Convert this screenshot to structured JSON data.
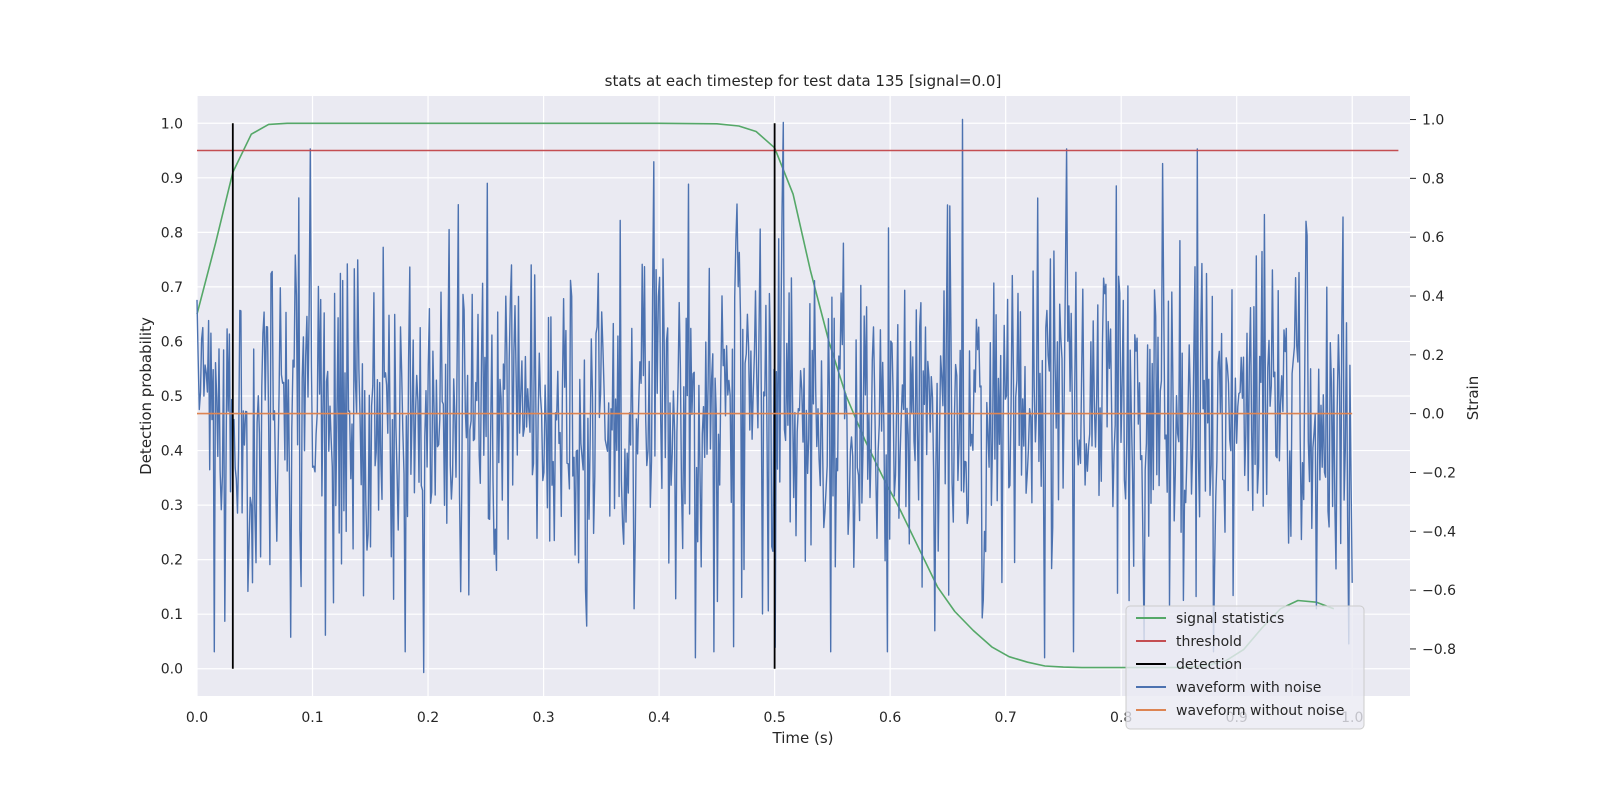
{
  "chart_data": {
    "type": "line",
    "title": "stats at each timestep for test data 135 [signal=0.0]",
    "xlabel": "Time (s)",
    "ylabel_left": "Detection probability",
    "ylabel_right": "Strain",
    "xlim": [
      0.0,
      1.05
    ],
    "ylim_left": [
      -0.05,
      1.05
    ],
    "ylim_right": [
      -0.96,
      1.08
    ],
    "x_ticks": [
      0.0,
      0.1,
      0.2,
      0.3,
      0.4,
      0.5,
      0.6,
      0.7,
      0.8,
      0.9,
      1.0
    ],
    "x_tick_labels": [
      "0.0",
      "0.1",
      "0.2",
      "0.3",
      "0.4",
      "0.5",
      "0.6",
      "0.7",
      "0.8",
      "0.9",
      "1.0"
    ],
    "y_left_ticks": [
      0.0,
      0.1,
      0.2,
      0.3,
      0.4,
      0.5,
      0.6,
      0.7,
      0.8,
      0.9,
      1.0
    ],
    "y_left_tick_labels": [
      "0.0",
      "0.1",
      "0.2",
      "0.3",
      "0.4",
      "0.5",
      "0.6",
      "0.7",
      "0.8",
      "0.9",
      "1.0"
    ],
    "y_right_ticks": [
      -0.8,
      -0.6,
      -0.4,
      -0.2,
      0.0,
      0.2,
      0.4,
      0.6,
      0.8,
      1.0
    ],
    "y_right_tick_labels": [
      "−0.8",
      "−0.6",
      "−0.4",
      "−0.2",
      "0.0",
      "0.2",
      "0.4",
      "0.6",
      "0.8",
      "1.0"
    ],
    "grid": true,
    "legend_position": "lower-right",
    "colors": {
      "background": "#eaeaf2",
      "grid": "#ffffff",
      "signal_statistics": "#55a868",
      "threshold": "#c44e52",
      "detection": "#000000",
      "waveform_with_noise": "#4c72b0",
      "waveform_without_noise": "#dd8452"
    },
    "legend": [
      {
        "key": "signal_statistics",
        "label": "signal statistics"
      },
      {
        "key": "threshold",
        "label": "threshold"
      },
      {
        "key": "detection",
        "label": "detection"
      },
      {
        "key": "waveform_with_noise",
        "label": "waveform with noise"
      },
      {
        "key": "waveform_without_noise",
        "label": "waveform without noise"
      }
    ],
    "series": [
      {
        "key": "signal_statistics",
        "axis": "left",
        "x": [
          0.0,
          0.016,
          0.031,
          0.047,
          0.062,
          0.078,
          0.094,
          0.125,
          0.2,
          0.3,
          0.4,
          0.45,
          0.469,
          0.484,
          0.5,
          0.516,
          0.531,
          0.547,
          0.562,
          0.578,
          0.594,
          0.609,
          0.625,
          0.641,
          0.656,
          0.672,
          0.688,
          0.703,
          0.719,
          0.734,
          0.75,
          0.766,
          0.781,
          0.797,
          0.812,
          0.828,
          0.844,
          0.859,
          0.875,
          0.891,
          0.906,
          0.922,
          0.938,
          0.953,
          0.969,
          0.984
        ],
        "y": [
          0.65,
          0.78,
          0.91,
          0.98,
          0.998,
          1.0,
          1.0,
          1.0,
          1.0,
          1.0,
          1.0,
          0.999,
          0.995,
          0.985,
          0.955,
          0.87,
          0.73,
          0.6,
          0.5,
          0.42,
          0.35,
          0.29,
          0.22,
          0.15,
          0.105,
          0.07,
          0.04,
          0.022,
          0.012,
          0.005,
          0.003,
          0.002,
          0.002,
          0.002,
          0.002,
          0.002,
          0.002,
          0.003,
          0.006,
          0.015,
          0.035,
          0.075,
          0.11,
          0.125,
          0.122,
          0.11
        ]
      },
      {
        "key": "threshold",
        "axis": "left",
        "x": [
          0.0,
          1.04
        ],
        "y": [
          0.95,
          0.95
        ]
      },
      {
        "key": "waveform_without_noise",
        "axis": "right",
        "x": [
          0.0,
          1.0
        ],
        "y": [
          0.0,
          0.0
        ]
      }
    ],
    "detections": [
      {
        "x": 0.031,
        "y0": 0.0,
        "y1": 1.0
      },
      {
        "x": 0.5,
        "y0": 0.0,
        "y1": 1.0
      }
    ],
    "noisy_waveform": {
      "key": "waveform_with_noise",
      "axis": "right",
      "x_start": 0.0,
      "x_end": 1.0,
      "samples": 1000,
      "std": 0.3,
      "min": -0.88,
      "max": 1.0,
      "extremes": [
        {
          "x": 0.196,
          "y": -0.88
        },
        {
          "x": 0.663,
          "y": 1.0
        },
        {
          "x": 0.508,
          "y": 0.99
        },
        {
          "x": 0.425,
          "y": 0.78
        },
        {
          "x": 0.431,
          "y": -0.83
        },
        {
          "x": 0.734,
          "y": -0.83
        },
        {
          "x": 0.081,
          "y": -0.76
        },
        {
          "x": 0.866,
          "y": 0.9
        },
        {
          "x": 0.836,
          "y": 0.85
        }
      ]
    }
  }
}
